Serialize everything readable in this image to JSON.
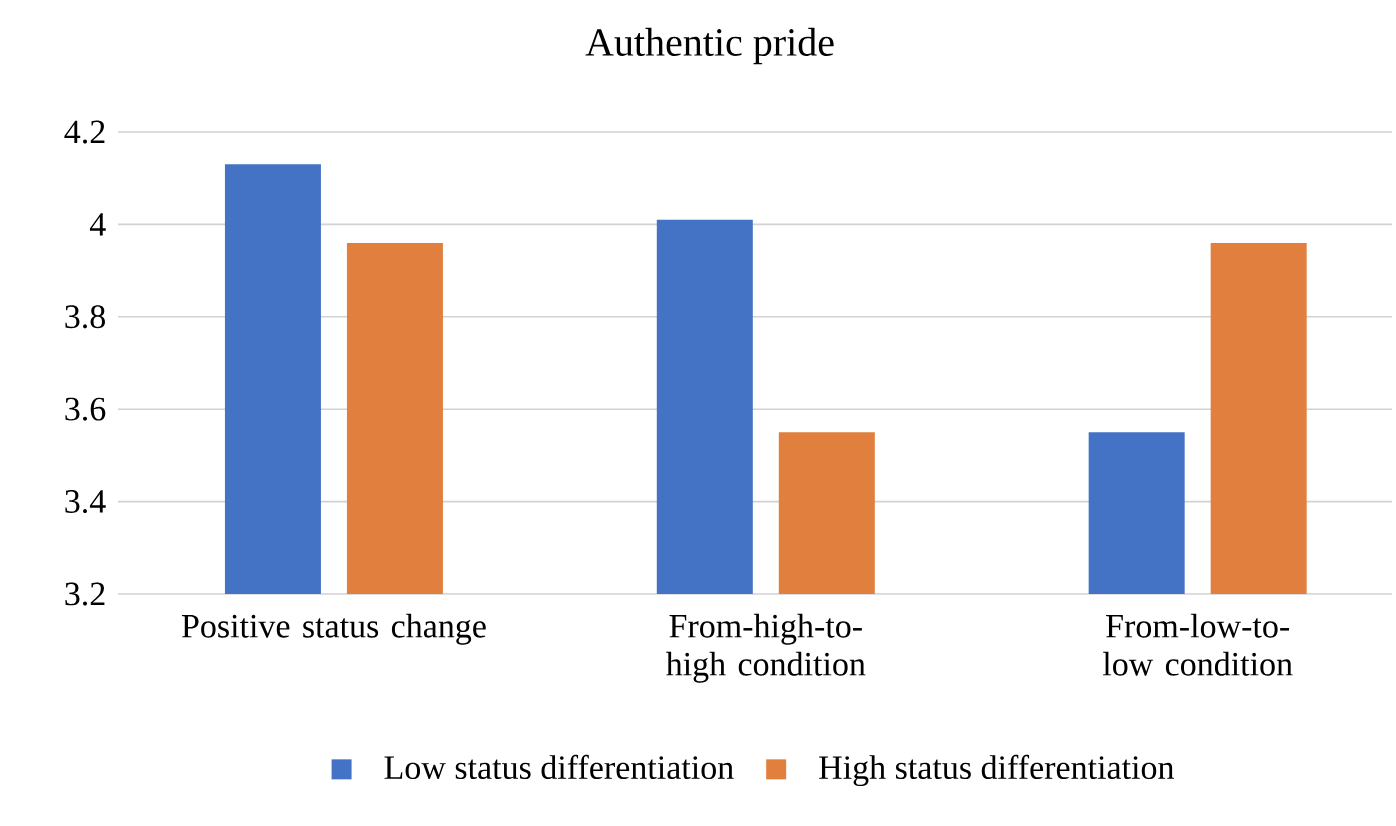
{
  "chart_data": {
    "type": "bar",
    "title": "Authentic pride",
    "categories": [
      "Positive status change",
      "From-high-to-high condition",
      "From-low-to-low condition"
    ],
    "series": [
      {
        "name": "Low status differentiation",
        "color": "#4472c4",
        "values": [
          4.13,
          4.01,
          3.55
        ]
      },
      {
        "name": "High status differentiation",
        "color": "#e07f3e",
        "values": [
          3.96,
          3.55,
          3.96
        ]
      }
    ],
    "ylim": [
      3.2,
      4.2
    ],
    "yticks": [
      3.2,
      3.4,
      3.6,
      3.8,
      4,
      4.2
    ],
    "grid": "y",
    "legend": "bottom"
  }
}
